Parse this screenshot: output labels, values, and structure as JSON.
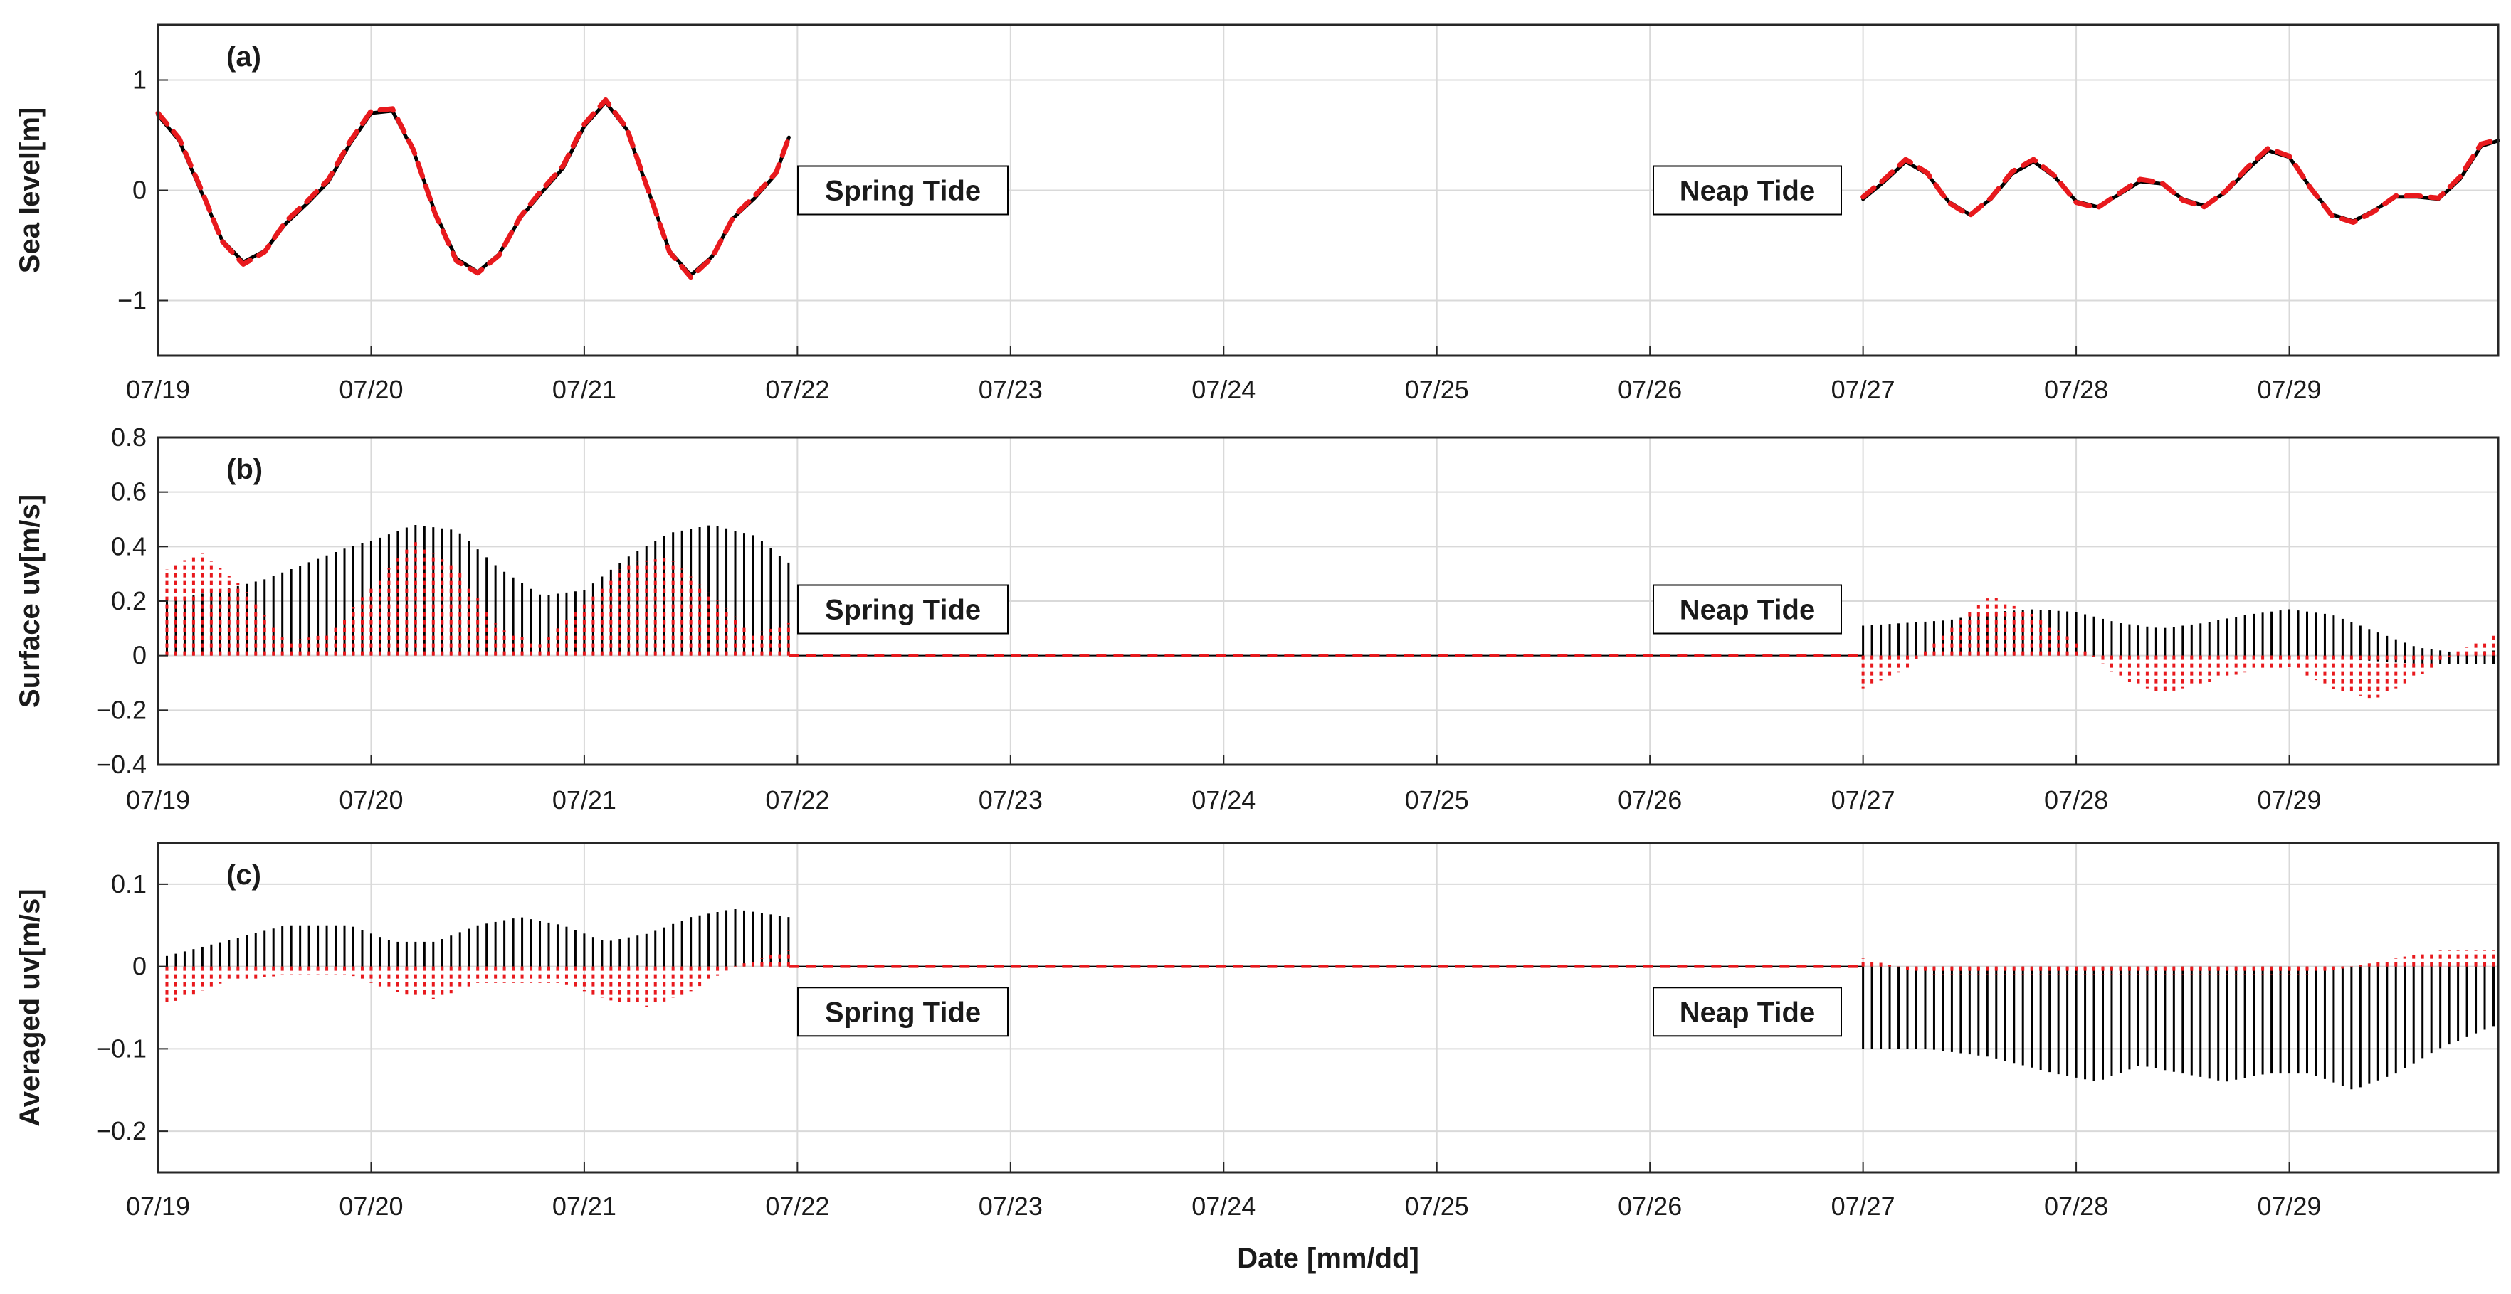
{
  "chart_data": [
    {
      "type": "line",
      "panel_tag": "(a)",
      "ylabel": "Sea level[m]",
      "xlabel": "",
      "x_tick_labels": [
        "07/19",
        "07/20",
        "07/21",
        "07/22",
        "07/23",
        "07/24",
        "07/25",
        "07/26",
        "07/27",
        "07/28",
        "07/29"
      ],
      "xlim_days": [
        0,
        10.98
      ],
      "ylim": [
        -1.5,
        1.5
      ],
      "y_ticks": [
        -1,
        0,
        1
      ],
      "y_tick_labels": [
        "−1",
        "0",
        "1"
      ],
      "grid": true,
      "annotations": [
        "Spring Tide",
        "Neap Tide"
      ],
      "series": [
        {
          "color": "#000000",
          "style": "solid",
          "segments": [
            {
              "x": [
                0.0,
                0.1,
                0.2,
                0.3,
                0.4,
                0.5,
                0.6,
                0.7,
                0.8,
                0.9,
                1.0,
                1.1,
                1.2,
                1.3,
                1.4,
                1.5,
                1.6,
                1.7,
                1.8,
                1.9,
                2.0,
                2.1,
                2.2,
                2.3,
                2.4,
                2.5,
                2.6,
                2.7,
                2.8,
                2.9,
                2.96
              ],
              "y": [
                0.68,
                0.45,
                0.0,
                -0.45,
                -0.65,
                -0.55,
                -0.3,
                -0.12,
                0.08,
                0.42,
                0.7,
                0.72,
                0.35,
                -0.2,
                -0.62,
                -0.74,
                -0.58,
                -0.25,
                -0.02,
                0.2,
                0.58,
                0.8,
                0.55,
                0.0,
                -0.55,
                -0.77,
                -0.6,
                -0.25,
                -0.07,
                0.15,
                0.48
              ]
            },
            {
              "x": [
                8.0,
                8.1,
                8.2,
                8.3,
                8.4,
                8.5,
                8.6,
                8.7,
                8.8,
                8.9,
                9.0,
                9.1,
                9.2,
                9.3,
                9.4,
                9.5,
                9.6,
                9.7,
                9.8,
                9.9,
                10.0,
                10.1,
                10.2,
                10.3,
                10.4,
                10.5,
                10.6,
                10.7,
                10.8,
                10.9,
                10.98
              ],
              "y": [
                -0.08,
                0.08,
                0.26,
                0.15,
                -0.1,
                -0.22,
                -0.08,
                0.15,
                0.26,
                0.12,
                -0.1,
                -0.15,
                -0.04,
                0.08,
                0.06,
                -0.08,
                -0.14,
                -0.02,
                0.18,
                0.36,
                0.3,
                0.02,
                -0.22,
                -0.28,
                -0.18,
                -0.06,
                -0.06,
                -0.08,
                0.1,
                0.4,
                0.45
              ]
            }
          ]
        },
        {
          "color": "#e8191d",
          "style": "dashed",
          "segments": [
            {
              "x": [
                0.0,
                0.1,
                0.2,
                0.3,
                0.4,
                0.5,
                0.6,
                0.7,
                0.8,
                0.9,
                1.0,
                1.1,
                1.2,
                1.3,
                1.4,
                1.5,
                1.6,
                1.7,
                1.8,
                1.9,
                2.0,
                2.1,
                2.2,
                2.3,
                2.4,
                2.5,
                2.6,
                2.7,
                2.8,
                2.9,
                2.96
              ],
              "y": [
                0.7,
                0.47,
                0.02,
                -0.46,
                -0.67,
                -0.56,
                -0.28,
                -0.1,
                0.1,
                0.44,
                0.72,
                0.74,
                0.36,
                -0.21,
                -0.64,
                -0.75,
                -0.59,
                -0.24,
                0.0,
                0.22,
                0.6,
                0.82,
                0.56,
                0.0,
                -0.56,
                -0.79,
                -0.61,
                -0.24,
                -0.05,
                0.16,
                0.48
              ]
            },
            {
              "x": [
                8.0,
                8.1,
                8.2,
                8.3,
                8.4,
                8.5,
                8.6,
                8.7,
                8.8,
                8.9,
                9.0,
                9.1,
                9.2,
                9.3,
                9.4,
                9.5,
                9.6,
                9.7,
                9.8,
                9.9,
                10.0,
                10.1,
                10.2,
                10.3,
                10.4,
                10.5,
                10.6,
                10.7,
                10.8,
                10.9,
                10.98
              ],
              "y": [
                -0.06,
                0.1,
                0.28,
                0.16,
                -0.11,
                -0.23,
                -0.07,
                0.17,
                0.28,
                0.13,
                -0.11,
                -0.16,
                -0.03,
                0.1,
                0.07,
                -0.09,
                -0.15,
                -0.01,
                0.2,
                0.38,
                0.31,
                0.02,
                -0.23,
                -0.29,
                -0.19,
                -0.05,
                -0.05,
                -0.07,
                0.12,
                0.42,
                0.46
              ]
            }
          ]
        }
      ]
    },
    {
      "type": "line",
      "panel_tag": "(b)",
      "ylabel": "Surface uv[m/s]",
      "xlabel": "",
      "x_tick_labels": [
        "07/19",
        "07/20",
        "07/21",
        "07/22",
        "07/23",
        "07/24",
        "07/25",
        "07/26",
        "07/27",
        "07/28",
        "07/29"
      ],
      "xlim_days": [
        0,
        10.98
      ],
      "ylim": [
        -0.4,
        0.8
      ],
      "y_ticks": [
        -0.4,
        -0.2,
        0,
        0.2,
        0.4,
        0.6,
        0.8
      ],
      "y_tick_labels": [
        "−0.4",
        "−0.2",
        "0",
        "0.2",
        "0.4",
        "0.6",
        "0.8"
      ],
      "grid": true,
      "annotations": [
        "Spring Tide",
        "Neap Tide"
      ],
      "stick_series": [
        {
          "color": "#000000",
          "style": "solid",
          "intervals": [
            [
              0.0,
              2.96
            ],
            [
              8.0,
              10.98
            ]
          ],
          "envelope_x": [
            0.0,
            0.3,
            0.5,
            0.7,
            0.9,
            1.0,
            1.2,
            1.4,
            1.6,
            1.8,
            2.0,
            2.2,
            2.4,
            2.6,
            2.8,
            2.96,
            8.0,
            8.2,
            8.4,
            8.6,
            8.8,
            9.0,
            9.2,
            9.4,
            9.6,
            9.8,
            10.0,
            10.2,
            10.4,
            10.6,
            10.8,
            10.98
          ],
          "envelope_y": [
            0.2,
            0.24,
            0.28,
            0.34,
            0.4,
            0.42,
            0.48,
            0.46,
            0.32,
            0.22,
            0.24,
            0.36,
            0.45,
            0.48,
            0.44,
            0.34,
            0.11,
            0.12,
            0.13,
            0.16,
            0.17,
            0.16,
            0.12,
            0.1,
            0.12,
            0.15,
            0.17,
            0.15,
            0.09,
            0.03,
            0.01,
            0.02
          ],
          "base_y": [
            0.0,
            0.0,
            0.0,
            0.0,
            0.0,
            0.0,
            0.0,
            0.0,
            0.0,
            0.0,
            0.0,
            0.0,
            0.0,
            0.0,
            0.0,
            0.0,
            0.0,
            0.0,
            0.0,
            0.0,
            0.0,
            0.0,
            0.0,
            0.0,
            0.0,
            0.0,
            0.0,
            -0.01,
            -0.02,
            -0.03,
            -0.03,
            -0.03
          ]
        },
        {
          "color": "#e8191d",
          "style": "dotted",
          "intervals": [
            [
              0.0,
              2.96
            ],
            [
              8.0,
              10.98
            ]
          ],
          "envelope_x": [
            0.0,
            0.2,
            0.4,
            0.6,
            0.8,
            1.0,
            1.2,
            1.4,
            1.6,
            1.8,
            2.0,
            2.2,
            2.4,
            2.6,
            2.8,
            2.96,
            8.0,
            8.2,
            8.4,
            8.6,
            8.8,
            9.0,
            9.2,
            9.4,
            9.6,
            9.8,
            10.0,
            10.2,
            10.4,
            10.6,
            10.8,
            10.98
          ],
          "envelope_y": [
            0.3,
            0.38,
            0.25,
            0.05,
            0.08,
            0.25,
            0.42,
            0.32,
            0.1,
            0.04,
            0.2,
            0.34,
            0.36,
            0.22,
            0.08,
            0.12,
            -0.12,
            -0.05,
            0.1,
            0.22,
            0.15,
            0.05,
            -0.08,
            -0.14,
            -0.1,
            -0.06,
            -0.04,
            -0.12,
            -0.16,
            -0.08,
            0.02,
            0.08
          ],
          "base_y": [
            0.0,
            0.0,
            0.0,
            0.0,
            0.0,
            0.0,
            0.0,
            0.0,
            0.0,
            0.0,
            0.0,
            0.0,
            0.0,
            0.0,
            0.0,
            0.0,
            0.0,
            0.0,
            0.0,
            0.0,
            0.0,
            0.0,
            0.0,
            0.0,
            0.0,
            0.0,
            0.0,
            0.0,
            0.0,
            0.0,
            0.0,
            0.0
          ]
        }
      ],
      "zero_line": {
        "color": "#e8191d",
        "style": "dashed",
        "x": [
          2.96,
          8.0
        ],
        "y": 0.0
      }
    },
    {
      "type": "line",
      "panel_tag": "(c)",
      "ylabel": "Averaged uv[m/s]",
      "xlabel": "Date [mm/dd]",
      "x_tick_labels": [
        "07/19",
        "07/20",
        "07/21",
        "07/22",
        "07/23",
        "07/24",
        "07/25",
        "07/26",
        "07/27",
        "07/28",
        "07/29"
      ],
      "xlim_days": [
        0,
        10.98
      ],
      "ylim": [
        -0.25,
        0.15
      ],
      "y_ticks": [
        -0.2,
        -0.1,
        0,
        0.1
      ],
      "y_tick_labels": [
        "−0.2",
        "−0.1",
        "0",
        "0.1"
      ],
      "grid": true,
      "annotations": [
        "Spring Tide",
        "Neap Tide"
      ],
      "stick_series": [
        {
          "color": "#000000",
          "style": "solid",
          "intervals": [
            [
              0.0,
              2.96
            ],
            [
              8.0,
              10.98
            ]
          ],
          "envelope_x": [
            0.0,
            0.3,
            0.6,
            0.9,
            1.1,
            1.3,
            1.5,
            1.7,
            1.9,
            2.1,
            2.3,
            2.5,
            2.7,
            2.96,
            8.0,
            8.3,
            8.6,
            8.9,
            9.1,
            9.3,
            9.5,
            9.7,
            9.9,
            10.1,
            10.3,
            10.5,
            10.7,
            10.98
          ],
          "envelope_y": [
            0.01,
            0.03,
            0.05,
            0.05,
            0.03,
            0.03,
            0.05,
            0.06,
            0.05,
            0.03,
            0.04,
            0.06,
            0.07,
            0.06,
            -0.1,
            -0.1,
            -0.11,
            -0.13,
            -0.14,
            -0.12,
            -0.13,
            -0.14,
            -0.13,
            -0.13,
            -0.15,
            -0.13,
            -0.1,
            -0.07
          ],
          "base_y": [
            0.0,
            0.0,
            0.0,
            0.0,
            0.0,
            0.0,
            0.0,
            0.0,
            0.0,
            0.0,
            0.0,
            0.0,
            0.0,
            0.0,
            0.0,
            0.0,
            0.0,
            0.0,
            0.0,
            0.0,
            0.0,
            0.0,
            0.0,
            0.0,
            0.0,
            0.0,
            0.0,
            0.0
          ]
        },
        {
          "color": "#e8191d",
          "style": "dotted",
          "intervals": [
            [
              0.0,
              2.96
            ],
            [
              8.0,
              10.98
            ]
          ],
          "envelope_x": [
            0.0,
            0.3,
            0.6,
            0.9,
            1.1,
            1.3,
            1.5,
            1.7,
            1.9,
            2.1,
            2.3,
            2.5,
            2.7,
            2.96,
            8.0,
            8.3,
            8.6,
            8.9,
            9.1,
            9.3,
            9.5,
            9.7,
            9.9,
            10.1,
            10.3,
            10.5,
            10.7,
            10.98
          ],
          "envelope_y": [
            -0.05,
            -0.02,
            -0.01,
            -0.01,
            -0.03,
            -0.04,
            -0.02,
            -0.02,
            -0.02,
            -0.04,
            -0.05,
            -0.03,
            0.0,
            0.02,
            0.01,
            -0.01,
            -0.01,
            -0.01,
            -0.01,
            -0.01,
            -0.01,
            -0.01,
            -0.01,
            -0.01,
            0.0,
            0.01,
            0.02,
            0.02
          ],
          "base_y": [
            0.0,
            0.0,
            0.0,
            0.0,
            0.0,
            0.0,
            0.0,
            0.0,
            0.0,
            0.0,
            0.0,
            0.0,
            0.0,
            0.0,
            0.0,
            0.0,
            0.0,
            0.0,
            0.0,
            0.0,
            0.0,
            0.0,
            0.0,
            0.0,
            0.0,
            0.0,
            0.0,
            0.0
          ]
        }
      ],
      "zero_line": {
        "color": "#e8191d",
        "style": "dashed",
        "x": [
          2.96,
          8.0
        ],
        "y": 0.0
      }
    }
  ],
  "colors": {
    "observed": "#000000",
    "model": "#e8191d",
    "grid": "#d9d9d9",
    "frame": "#262626"
  }
}
